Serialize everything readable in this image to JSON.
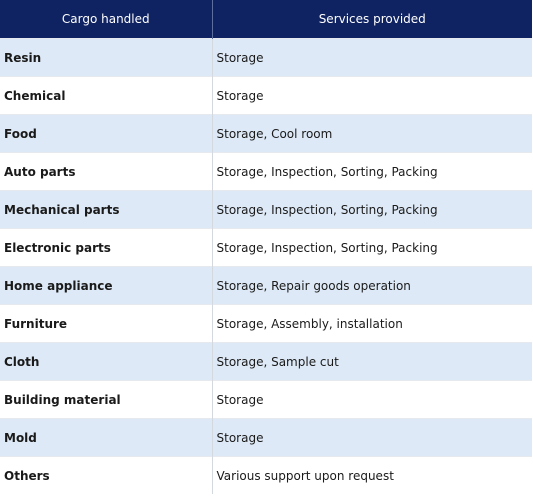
{
  "table": {
    "headers": [
      "Cargo handled",
      "Services provided"
    ],
    "rows": [
      {
        "cargo": "Resin",
        "services": "Storage"
      },
      {
        "cargo": "Chemical",
        "services": "Storage"
      },
      {
        "cargo": "Food",
        "services": "Storage, Cool room"
      },
      {
        "cargo": "Auto parts",
        "services": "Storage, Inspection, Sorting, Packing"
      },
      {
        "cargo": "Mechanical parts",
        "services": "Storage, Inspection, Sorting, Packing"
      },
      {
        "cargo": "Electronic parts",
        "services": "Storage, Inspection, Sorting, Packing"
      },
      {
        "cargo": "Home appliance",
        "services": "Storage, Repair goods operation"
      },
      {
        "cargo": "Furniture",
        "services": "Storage, Assembly, installation"
      },
      {
        "cargo": "Cloth",
        "services": "Storage, Sample cut"
      },
      {
        "cargo": "Building material",
        "services": "Storage"
      },
      {
        "cargo": "Mold",
        "services": "Storage"
      },
      {
        "cargo": "Others",
        "services": "Various support upon request"
      }
    ]
  },
  "colors": {
    "header_bg": "#0f2362",
    "header_text": "#ffffff",
    "stripe": "#dde9f6",
    "plain": "#ffffff"
  }
}
